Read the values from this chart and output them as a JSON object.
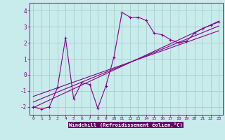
{
  "xlabel": "Windchill (Refroidissement éolien,°C)",
  "bg_color": "#c8ecec",
  "grid_color": "#a8cccc",
  "line_color": "#880088",
  "axis_bar_color": "#660066",
  "xlim": [
    -0.5,
    23.5
  ],
  "ylim": [
    -2.5,
    4.5
  ],
  "xticks": [
    0,
    1,
    2,
    3,
    4,
    5,
    6,
    7,
    8,
    9,
    10,
    11,
    12,
    13,
    14,
    15,
    16,
    17,
    18,
    19,
    20,
    21,
    22,
    23
  ],
  "yticks": [
    -2,
    -1,
    0,
    1,
    2,
    3,
    4
  ],
  "main_series_x": [
    0,
    1,
    2,
    3,
    4,
    5,
    6,
    7,
    8,
    9,
    10,
    11,
    12,
    13,
    14,
    15,
    16,
    17,
    18,
    19,
    20,
    21,
    22,
    23
  ],
  "main_series_y": [
    -2.0,
    -2.15,
    -2.0,
    -0.8,
    2.3,
    -1.5,
    -0.5,
    -0.6,
    -2.1,
    -0.7,
    1.1,
    3.9,
    3.6,
    3.6,
    3.4,
    2.6,
    2.5,
    2.2,
    2.0,
    2.1,
    2.6,
    2.9,
    3.1,
    3.3
  ],
  "line2_x": [
    0,
    23
  ],
  "line2_y": [
    -2.05,
    3.35
  ],
  "line3_x": [
    0,
    23
  ],
  "line3_y": [
    -1.7,
    3.05
  ],
  "line4_x": [
    0,
    23
  ],
  "line4_y": [
    -1.35,
    2.75
  ]
}
